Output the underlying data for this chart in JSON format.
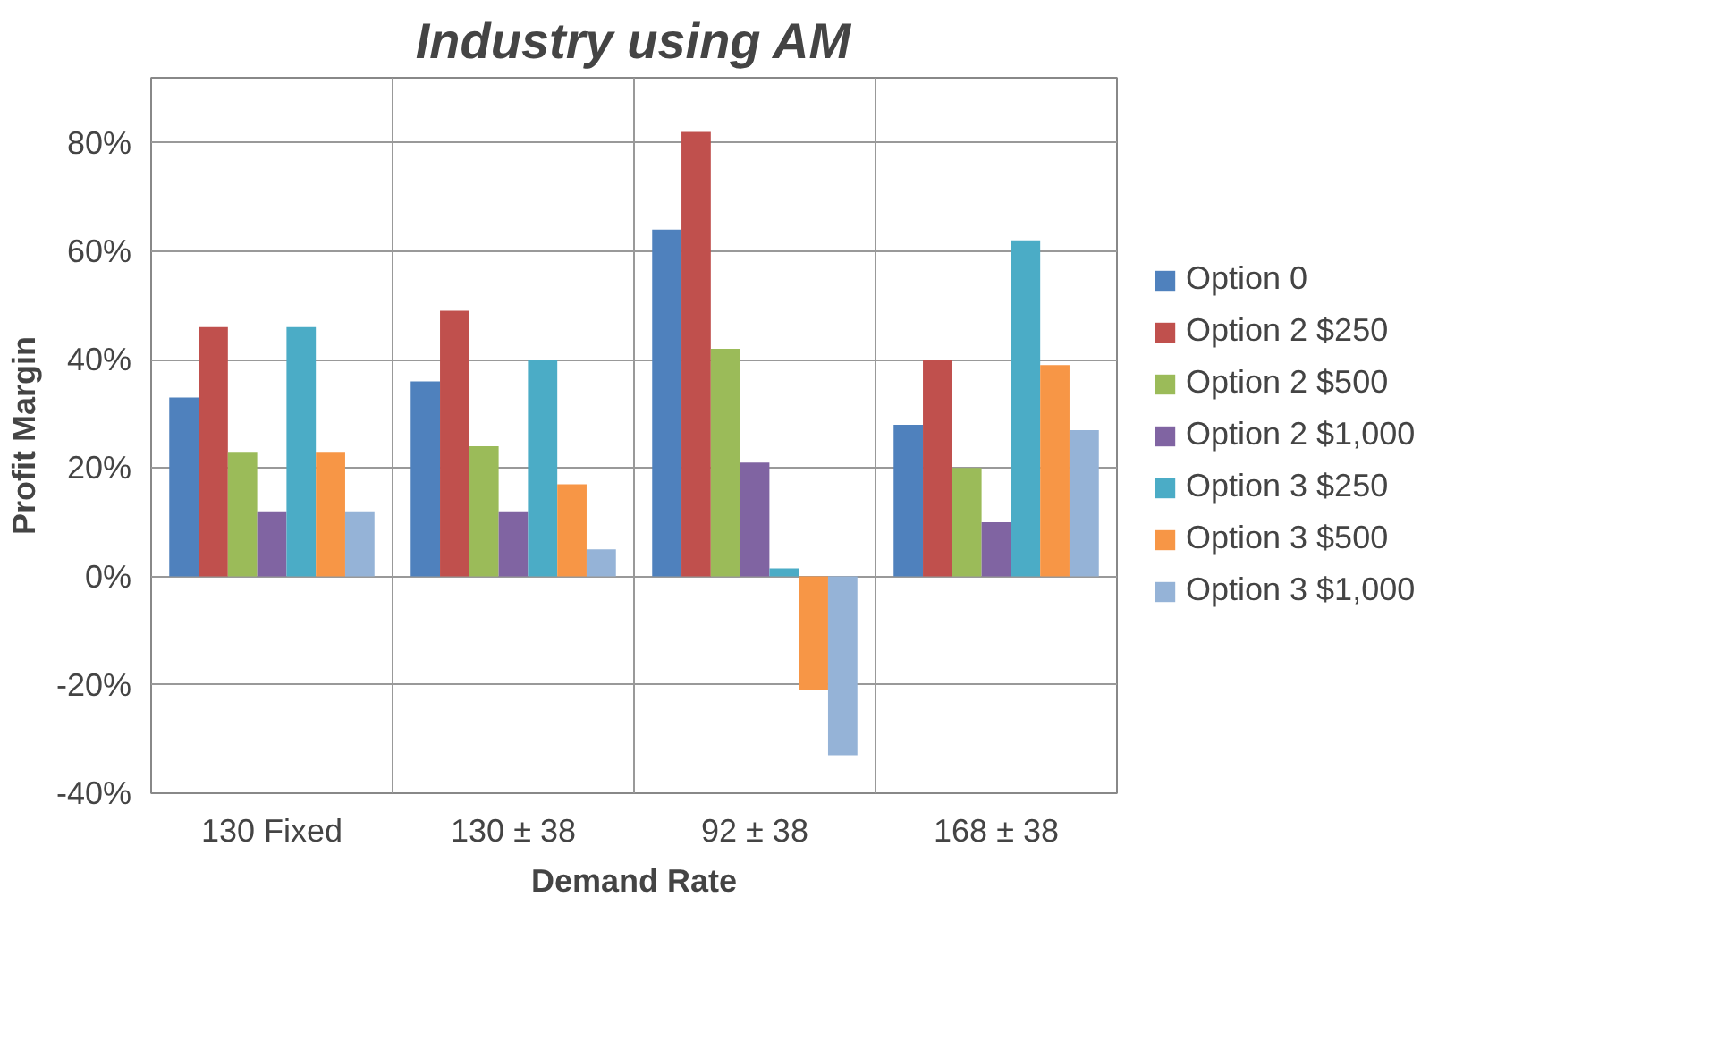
{
  "chart_data": {
    "type": "bar",
    "title": "Industry using AM",
    "xlabel": "Demand Rate",
    "ylabel": "Profit Margin",
    "categories": [
      "130 Fixed",
      "130 ± 38",
      "92 ± 38",
      "168 ± 38"
    ],
    "series": [
      {
        "name": "Option 0",
        "color": "#4f81bd",
        "values": [
          33,
          36,
          64,
          28
        ]
      },
      {
        "name": "Option 2 $250",
        "color": "#c0504d",
        "values": [
          46,
          49,
          82,
          40
        ]
      },
      {
        "name": "Option 2 $500",
        "color": "#9bbb59",
        "values": [
          23,
          24,
          42,
          20
        ]
      },
      {
        "name": "Option 2 $1,000",
        "color": "#8064a2",
        "values": [
          12,
          12,
          21,
          10
        ]
      },
      {
        "name": "Option 3 $250",
        "color": "#4bacc6",
        "values": [
          46,
          40,
          1.5,
          62
        ]
      },
      {
        "name": "Option 3 $500",
        "color": "#f79646",
        "values": [
          23,
          17,
          -21,
          39
        ]
      },
      {
        "name": "Option 3 $1,000",
        "color": "#95b3d7",
        "values": [
          12,
          5,
          -33,
          27
        ]
      }
    ],
    "ylim": [
      -40,
      92
    ],
    "yticks": [
      {
        "value": -40,
        "label": "-40%"
      },
      {
        "value": -20,
        "label": "-20%"
      },
      {
        "value": 0,
        "label": "0%"
      },
      {
        "value": 20,
        "label": "20%"
      },
      {
        "value": 40,
        "label": "40%"
      },
      {
        "value": 60,
        "label": "60%"
      },
      {
        "value": 80,
        "label": "80%"
      }
    ],
    "grid": true,
    "legend": "right"
  }
}
